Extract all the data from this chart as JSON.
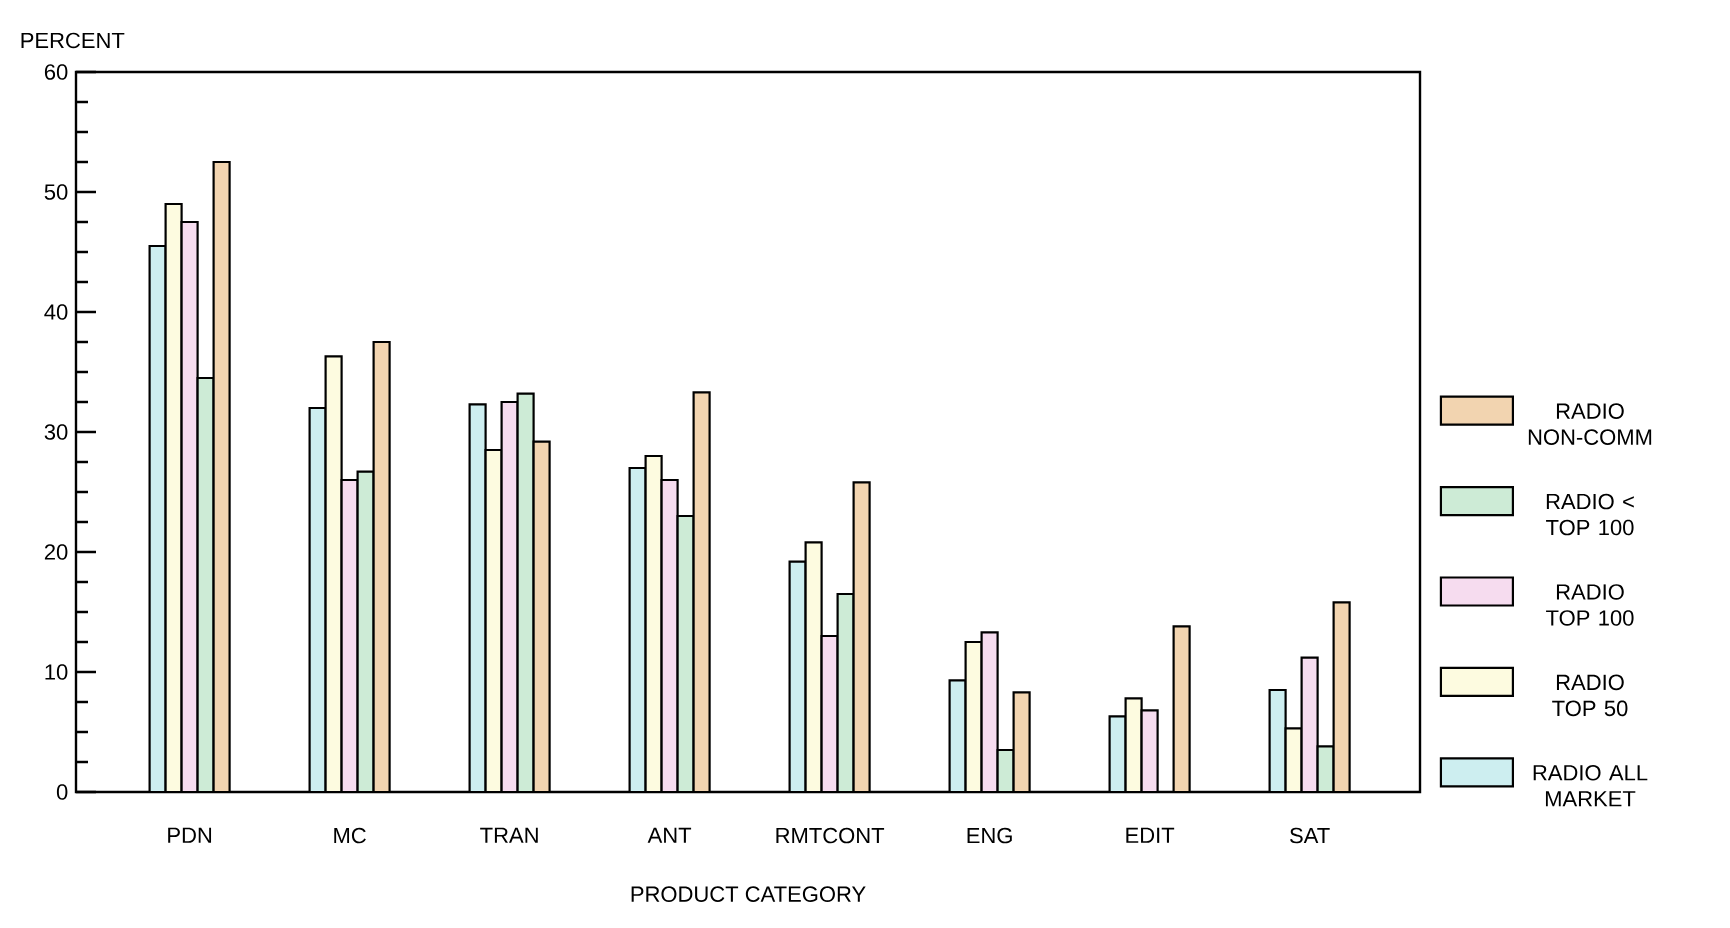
{
  "chart_data": {
    "type": "bar",
    "xlabel": "PRODUCT CATEGORY",
    "ylabel": "PERCENT",
    "categories": [
      "PDN",
      "MC",
      "TRAN",
      "ANT",
      "RMTCONT",
      "ENG",
      "EDIT",
      "SAT"
    ],
    "series": [
      {
        "name": "RADIO ALL MARKET",
        "color": "#cdeef0",
        "values": [
          45.5,
          32,
          32.3,
          27,
          19.2,
          9.3,
          6.3,
          8.5
        ]
      },
      {
        "name": "RADIO TOP 50",
        "color": "#fdfbe0",
        "values": [
          49,
          36.3,
          28.5,
          28,
          20.8,
          12.5,
          7.8,
          5.3
        ]
      },
      {
        "name": "RADIO TOP 100",
        "color": "#f6dcef",
        "values": [
          47.5,
          26,
          32.5,
          26,
          13,
          13.3,
          6.8,
          11.2
        ]
      },
      {
        "name": "RADIO < TOP 100",
        "color": "#cdebd6",
        "values": [
          34.5,
          26.7,
          33.2,
          23,
          16.5,
          3.5,
          null,
          3.8
        ]
      },
      {
        "name": "RADIO NON-COMM",
        "color": "#f2d4b0",
        "values": [
          52.5,
          37.5,
          29.2,
          33.3,
          25.8,
          8.3,
          13.8,
          15.8
        ]
      }
    ],
    "ylim": [
      0,
      60
    ],
    "yticks": [
      0,
      10,
      20,
      30,
      40,
      50,
      60
    ],
    "grid": false,
    "legend": "right"
  }
}
